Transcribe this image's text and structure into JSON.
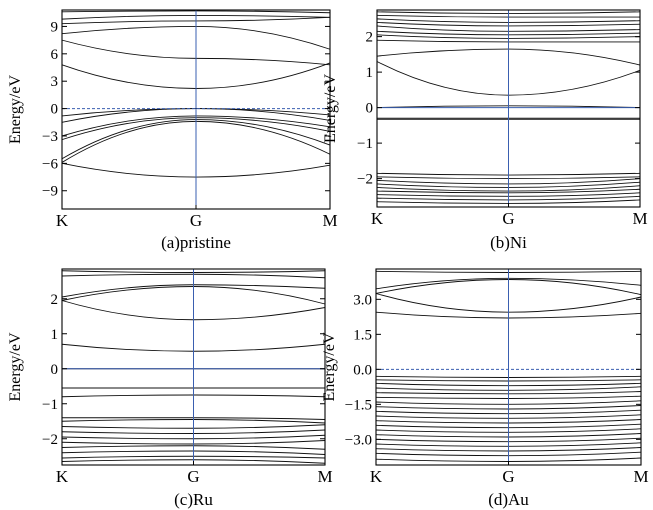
{
  "chart_data": [
    {
      "type": "line",
      "caption": "(a)pristine",
      "ylabel": "Energy/eV",
      "ylim": [
        -11,
        10.8
      ],
      "yticks": [
        {
          "value": 9,
          "label": "9"
        },
        {
          "value": 6,
          "label": "6"
        },
        {
          "value": 3,
          "label": "3"
        },
        {
          "value": 0,
          "label": "0"
        },
        {
          "value": -3,
          "label": "−3"
        },
        {
          "value": -6,
          "label": "−6"
        },
        {
          "value": -9,
          "label": "−9"
        }
      ],
      "kpoints": [
        {
          "pos": 0,
          "label": "K"
        },
        {
          "pos": 1,
          "label": "G"
        },
        {
          "pos": 2,
          "label": "M"
        }
      ],
      "fermi_level": 0,
      "fermi_style": "dashed",
      "series": [
        {
          "values": [
            10.6,
            10.7,
            10.5
          ]
        },
        {
          "values": [
            9.8,
            10.2,
            10.0
          ]
        },
        {
          "values": [
            9.3,
            9.6,
            10.0
          ]
        },
        {
          "values": [
            8.2,
            9.0,
            6.5
          ]
        },
        {
          "values": [
            7.5,
            5.5,
            4.8
          ]
        },
        {
          "values": [
            4.8,
            2.2,
            5.0
          ]
        },
        {
          "values": [
            -0.8,
            0.0,
            -0.7
          ]
        },
        {
          "values": [
            -1.5,
            0.0,
            -1.3
          ]
        },
        {
          "values": [
            -3.0,
            -0.8,
            -2.0
          ]
        },
        {
          "values": [
            -3.4,
            -1.0,
            -2.5
          ]
        },
        {
          "values": [
            -5.5,
            -1.2,
            -4.0
          ]
        },
        {
          "values": [
            -5.9,
            -1.4,
            -5.0
          ]
        },
        {
          "values": [
            -6.0,
            -7.5,
            -6.2
          ]
        }
      ]
    },
    {
      "type": "line",
      "caption": "(b)Ni",
      "ylabel": "Energy/eV",
      "ylim": [
        -2.8,
        2.75
      ],
      "yticks": [
        {
          "value": 2,
          "label": "2"
        },
        {
          "value": 1,
          "label": "1"
        },
        {
          "value": 0,
          "label": "0"
        },
        {
          "value": -1,
          "label": "−1"
        },
        {
          "value": -2,
          "label": "−2"
        }
      ],
      "kpoints": [
        {
          "pos": 0,
          "label": "K"
        },
        {
          "pos": 1,
          "label": "G"
        },
        {
          "pos": 2,
          "label": "M"
        }
      ],
      "fermi_level": 0,
      "fermi_style": "solid",
      "series": [
        {
          "values": [
            2.7,
            2.65,
            2.7
          ]
        },
        {
          "values": [
            2.6,
            2.55,
            2.55
          ]
        },
        {
          "values": [
            2.5,
            2.4,
            2.45
          ]
        },
        {
          "values": [
            2.4,
            2.3,
            2.35
          ]
        },
        {
          "values": [
            2.3,
            2.15,
            2.2
          ]
        },
        {
          "values": [
            2.15,
            2.05,
            2.1
          ]
        },
        {
          "values": [
            2.05,
            1.95,
            2.0
          ]
        },
        {
          "values": [
            1.9,
            1.85,
            1.85
          ]
        },
        {
          "values": [
            1.45,
            1.65,
            1.2
          ]
        },
        {
          "values": [
            1.3,
            0.35,
            1.05
          ]
        },
        {
          "values": [
            0.0,
            0.05,
            0.0
          ]
        },
        {
          "values": [
            -0.3,
            -0.3,
            -0.3
          ]
        },
        {
          "values": [
            -0.33,
            -0.33,
            -0.33
          ]
        },
        {
          "values": [
            -1.85,
            -1.9,
            -1.85
          ]
        },
        {
          "values": [
            -1.95,
            -2.0,
            -1.95
          ]
        },
        {
          "values": [
            -2.05,
            -2.15,
            -2.0
          ]
        },
        {
          "values": [
            -2.15,
            -2.25,
            -2.1
          ]
        },
        {
          "values": [
            -2.25,
            -2.35,
            -2.2
          ]
        },
        {
          "values": [
            -2.35,
            -2.4,
            -2.3
          ]
        },
        {
          "values": [
            -2.45,
            -2.5,
            -2.4
          ]
        },
        {
          "values": [
            -2.55,
            -2.6,
            -2.5
          ]
        },
        {
          "values": [
            -2.65,
            -2.7,
            -2.6
          ]
        }
      ]
    },
    {
      "type": "line",
      "caption": "(c)Ru",
      "ylabel": "Energy/eV",
      "ylim": [
        -2.75,
        2.85
      ],
      "yticks": [
        {
          "value": 2,
          "label": "2"
        },
        {
          "value": 1,
          "label": "1"
        },
        {
          "value": 0,
          "label": "0"
        },
        {
          "value": -1,
          "label": "−1"
        },
        {
          "value": -2,
          "label": "−2"
        }
      ],
      "kpoints": [
        {
          "pos": 0,
          "label": "K"
        },
        {
          "pos": 1,
          "label": "G"
        },
        {
          "pos": 2,
          "label": "M"
        }
      ],
      "fermi_level": 0,
      "fermi_style": "solid",
      "series": [
        {
          "values": [
            2.8,
            2.75,
            2.8
          ]
        },
        {
          "values": [
            2.65,
            2.7,
            2.6
          ]
        },
        {
          "values": [
            2.05,
            2.4,
            2.3
          ]
        },
        {
          "values": [
            1.95,
            2.35,
            1.85
          ]
        },
        {
          "values": [
            1.95,
            1.4,
            1.75
          ]
        },
        {
          "values": [
            0.7,
            0.5,
            0.7
          ]
        },
        {
          "values": [
            0.0,
            0.0,
            0.0
          ]
        },
        {
          "values": [
            -0.55,
            -0.55,
            -0.55
          ]
        },
        {
          "values": [
            -0.8,
            -0.75,
            -0.8
          ]
        },
        {
          "values": [
            -1.4,
            -1.4,
            -1.45
          ]
        },
        {
          "values": [
            -1.5,
            -1.45,
            -1.55
          ]
        },
        {
          "values": [
            -1.65,
            -1.7,
            -1.6
          ]
        },
        {
          "values": [
            -1.8,
            -1.85,
            -1.75
          ]
        },
        {
          "values": [
            -1.95,
            -2.0,
            -1.9
          ]
        },
        {
          "values": [
            -2.1,
            -2.15,
            -2.05
          ]
        },
        {
          "values": [
            -2.25,
            -2.2,
            -2.3
          ]
        },
        {
          "values": [
            -2.4,
            -2.35,
            -2.45
          ]
        },
        {
          "values": [
            -2.55,
            -2.5,
            -2.55
          ]
        },
        {
          "values": [
            -2.65,
            -2.6,
            -2.7
          ]
        }
      ]
    },
    {
      "type": "line",
      "caption": "(d)Au",
      "ylabel": "Energy/eV",
      "ylim": [
        -4.1,
        4.3
      ],
      "yticks": [
        {
          "value": 3,
          "label": "3.0"
        },
        {
          "value": 1.5,
          "label": "1.5"
        },
        {
          "value": 0,
          "label": "0.0"
        },
        {
          "value": -1.5,
          "label": "−1.5"
        },
        {
          "value": -3,
          "label": "−3.0"
        }
      ],
      "kpoints": [
        {
          "pos": 0,
          "label": "K"
        },
        {
          "pos": 1,
          "label": "G"
        },
        {
          "pos": 2,
          "label": "M"
        }
      ],
      "fermi_level": 0,
      "fermi_style": "dashed",
      "series": [
        {
          "values": [
            4.2,
            4.15,
            4.2
          ]
        },
        {
          "values": [
            3.45,
            3.9,
            3.6
          ]
        },
        {
          "values": [
            3.25,
            3.85,
            3.2
          ]
        },
        {
          "values": [
            3.25,
            2.45,
            3.1
          ]
        },
        {
          "values": [
            2.45,
            2.2,
            2.4
          ]
        },
        {
          "values": [
            -0.3,
            -0.35,
            -0.3
          ]
        },
        {
          "values": [
            -0.45,
            -0.5,
            -0.45
          ]
        },
        {
          "values": [
            -0.6,
            -0.7,
            -0.6
          ]
        },
        {
          "values": [
            -0.8,
            -0.9,
            -0.75
          ]
        },
        {
          "values": [
            -1.0,
            -1.05,
            -0.95
          ]
        },
        {
          "values": [
            -1.2,
            -1.25,
            -1.15
          ]
        },
        {
          "values": [
            -1.4,
            -1.5,
            -1.35
          ]
        },
        {
          "values": [
            -1.6,
            -1.7,
            -1.55
          ]
        },
        {
          "values": [
            -1.8,
            -1.9,
            -1.75
          ]
        },
        {
          "values": [
            -2.0,
            -2.1,
            -1.95
          ]
        },
        {
          "values": [
            -2.2,
            -2.3,
            -2.15
          ]
        },
        {
          "values": [
            -2.4,
            -2.5,
            -2.35
          ]
        },
        {
          "values": [
            -2.6,
            -2.7,
            -2.55
          ]
        },
        {
          "values": [
            -2.8,
            -2.9,
            -2.75
          ]
        },
        {
          "values": [
            -3.0,
            -3.1,
            -2.95
          ]
        },
        {
          "values": [
            -3.2,
            -3.3,
            -3.15
          ]
        },
        {
          "values": [
            -3.4,
            -3.5,
            -3.35
          ]
        },
        {
          "values": [
            -3.6,
            -3.7,
            -3.55
          ]
        },
        {
          "values": [
            -3.85,
            -3.95,
            -3.8
          ]
        }
      ]
    }
  ]
}
